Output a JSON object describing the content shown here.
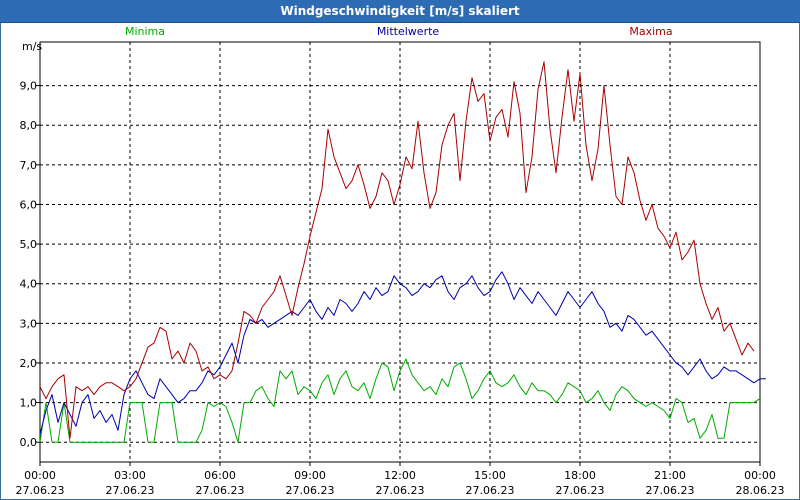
{
  "window": {
    "title": "Windgeschwindigkeit [m/s] skaliert"
  },
  "chart_data": {
    "type": "line",
    "title": "Windgeschwindigkeit [m/s] skaliert",
    "ylabel": "m/s",
    "xlabel": "",
    "ylim": [
      -0.5,
      10.1
    ],
    "xlim_hours": [
      0,
      24
    ],
    "y_ticks": [
      {
        "value": 0,
        "label": "0,0"
      },
      {
        "value": 1,
        "label": "1,0"
      },
      {
        "value": 2,
        "label": "2,0"
      },
      {
        "value": 3,
        "label": "3,0"
      },
      {
        "value": 4,
        "label": "4,0"
      },
      {
        "value": 5,
        "label": "5,0"
      },
      {
        "value": 6,
        "label": "6,0"
      },
      {
        "value": 7,
        "label": "7,0"
      },
      {
        "value": 8,
        "label": "8,0"
      },
      {
        "value": 9,
        "label": "9,0"
      }
    ],
    "x_ticks": [
      {
        "hour": 0,
        "time": "00:00",
        "date": "27.06.23"
      },
      {
        "hour": 3,
        "time": "03:00",
        "date": "27.06.23"
      },
      {
        "hour": 6,
        "time": "06:00",
        "date": "27.06.23"
      },
      {
        "hour": 9,
        "time": "09:00",
        "date": "27.06.23"
      },
      {
        "hour": 12,
        "time": "12:00",
        "date": "27.06.23"
      },
      {
        "hour": 15,
        "time": "15:00",
        "date": "27.06.23"
      },
      {
        "hour": 18,
        "time": "18:00",
        "date": "27.06.23"
      },
      {
        "hour": 21,
        "time": "21:00",
        "date": "27.06.23"
      },
      {
        "hour": 24,
        "time": "00:00",
        "date": "28.06.23"
      }
    ],
    "series": [
      {
        "name": "Minima",
        "color": "#00aa00",
        "step_hours": 0.2,
        "values": [
          0,
          1,
          0,
          0,
          1,
          0,
          0,
          0,
          0,
          0,
          0,
          0,
          0,
          0,
          0,
          1,
          1,
          1,
          0,
          0,
          1,
          1,
          1,
          0,
          0,
          0,
          0,
          0.3,
          1,
          0.9,
          1,
          0.9,
          0.5,
          0,
          1,
          1,
          1.3,
          1.4,
          1.1,
          0.9,
          1.8,
          1.6,
          1.8,
          1.2,
          1.4,
          1.3,
          1.1,
          1.5,
          1.7,
          1.2,
          1.6,
          1.8,
          1.4,
          1.3,
          1.5,
          1.1,
          1.6,
          2.0,
          1.9,
          1.3,
          1.8,
          2.1,
          1.7,
          1.5,
          1.3,
          1.4,
          1.2,
          1.6,
          1.4,
          1.9,
          2.0,
          1.6,
          1.1,
          1.3,
          1.6,
          1.8,
          1.5,
          1.4,
          1.5,
          1.7,
          1.4,
          1.2,
          1.5,
          1.3,
          1.3,
          1.2,
          1.0,
          1.2,
          1.5,
          1.4,
          1.3,
          1.0,
          1.1,
          1.3,
          1.0,
          0.8,
          1.2,
          1.4,
          1.3,
          1.1,
          1.0,
          0.9,
          1.0,
          0.9,
          0.8,
          0.6,
          1.1,
          1.0,
          0.5,
          0.6,
          0.1,
          0.3,
          0.7,
          0.1,
          0.1,
          1.0,
          1.0,
          1.0,
          1.0,
          1.0,
          1.1
        ]
      },
      {
        "name": "Mittelwerte",
        "color": "#0000aa",
        "step_hours": 0.2,
        "values": [
          0.2,
          0.8,
          1.2,
          0.5,
          1.0,
          0.7,
          0.4,
          1.0,
          1.2,
          0.6,
          0.8,
          0.5,
          0.7,
          0.3,
          1.2,
          1.6,
          1.8,
          1.5,
          1.2,
          1.1,
          1.6,
          1.4,
          1.2,
          1.0,
          1.1,
          1.3,
          1.3,
          1.5,
          1.8,
          1.7,
          1.9,
          2.2,
          2.5,
          2.0,
          2.7,
          3.1,
          3.0,
          3.1,
          2.9,
          3.0,
          3.1,
          3.2,
          3.3,
          3.2,
          3.4,
          3.6,
          3.3,
          3.1,
          3.4,
          3.2,
          3.6,
          3.5,
          3.3,
          3.5,
          3.8,
          3.6,
          3.9,
          3.7,
          3.8,
          4.2,
          4.0,
          3.9,
          3.7,
          3.8,
          4.0,
          3.9,
          4.1,
          4.2,
          3.8,
          3.6,
          3.9,
          4.0,
          4.2,
          3.9,
          3.7,
          3.8,
          4.1,
          4.3,
          4.0,
          3.6,
          3.9,
          3.7,
          3.5,
          3.8,
          3.6,
          3.4,
          3.2,
          3.5,
          3.8,
          3.6,
          3.4,
          3.6,
          3.8,
          3.5,
          3.3,
          2.9,
          3.0,
          2.8,
          3.2,
          3.1,
          2.9,
          2.7,
          2.8,
          2.6,
          2.4,
          2.2,
          2.0,
          1.9,
          1.7,
          1.9,
          2.1,
          1.8,
          1.6,
          1.7,
          1.9,
          1.8,
          1.8,
          1.7,
          1.6,
          1.5,
          1.6,
          1.6
        ]
      },
      {
        "name": "Maxima",
        "color": "#aa0000",
        "step_hours": 0.2,
        "values": [
          1.4,
          1.1,
          1.4,
          1.6,
          1.7,
          0.1,
          1.4,
          1.3,
          1.4,
          1.2,
          1.4,
          1.5,
          1.5,
          1.4,
          1.3,
          1.4,
          1.6,
          2.0,
          2.4,
          2.5,
          2.9,
          2.8,
          2.1,
          2.3,
          2.0,
          2.5,
          2.3,
          1.8,
          1.9,
          1.6,
          1.7,
          1.6,
          1.8,
          2.5,
          3.3,
          3.2,
          3.0,
          3.4,
          3.6,
          3.8,
          4.2,
          3.7,
          3.2,
          3.9,
          4.5,
          5.2,
          5.8,
          6.4,
          7.9,
          7.2,
          6.8,
          6.4,
          6.6,
          7.0,
          6.5,
          5.9,
          6.2,
          6.8,
          6.6,
          6.0,
          6.5,
          7.2,
          6.9,
          8.1,
          6.8,
          5.9,
          6.3,
          7.5,
          8.0,
          8.3,
          6.6,
          8.1,
          9.2,
          8.6,
          8.8,
          7.6,
          8.2,
          8.4,
          7.7,
          9.1,
          8.3,
          6.3,
          7.2,
          8.9,
          9.6,
          7.9,
          6.8,
          8.2,
          9.4,
          8.1,
          9.3,
          7.5,
          6.6,
          7.4,
          9.0,
          7.5,
          6.2,
          6.0,
          7.2,
          6.8,
          6.1,
          5.6,
          6.0,
          5.4,
          5.2,
          4.9,
          5.3,
          4.6,
          4.8,
          5.1,
          4.0,
          3.5,
          3.1,
          3.4,
          2.8,
          3.0,
          2.6,
          2.2,
          2.5,
          2.3
        ]
      }
    ]
  }
}
